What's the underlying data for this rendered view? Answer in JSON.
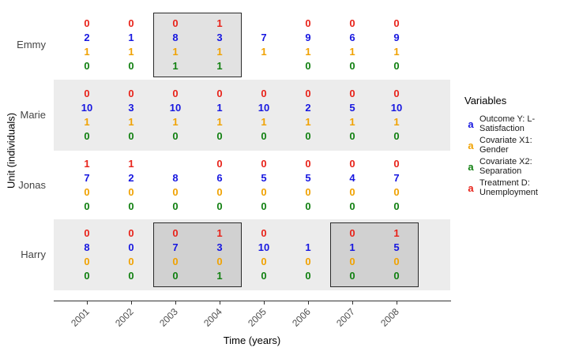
{
  "colors": {
    "red": "#E8231A",
    "blue": "#1717E0",
    "orange": "#F0A202",
    "green": "#118011",
    "band": "#ECECEC",
    "box_border": "#2A2A2A",
    "axis": "#333333",
    "tick_label": "#4D4D4D"
  },
  "axes": {
    "x_title": "Time (years)",
    "y_title": "Unit (individuals)"
  },
  "legend": {
    "title": "Variables",
    "key_glyph": "a",
    "entries": [
      {
        "series": "outcome",
        "color": "blue",
        "label": "Outcome Y: L-Satisfaction"
      },
      {
        "series": "covariate_x1",
        "color": "orange",
        "label": "Covariate X1: Gender"
      },
      {
        "series": "covariate_x2",
        "color": "green",
        "label": "Covariate X2: Separation"
      },
      {
        "series": "treatment",
        "color": "red",
        "label": "Treatment D: Unemployment"
      }
    ]
  },
  "chart_data": {
    "type": "table",
    "title": "",
    "xlabel": "Time (years)",
    "ylabel": "Unit (individuals)",
    "x": [
      "2001",
      "2002",
      "2003",
      "2004",
      "2005",
      "2006",
      "2007",
      "2008"
    ],
    "row_order_per_unit": [
      "treatment",
      "outcome",
      "covariate_x1",
      "covariate_x2"
    ],
    "series_colors": {
      "treatment": "red",
      "outcome": "blue",
      "covariate_x1": "orange",
      "covariate_x2": "green"
    },
    "units": [
      {
        "name": "Emmy",
        "shaded": false,
        "treatment": [
          0,
          0,
          0,
          1,
          null,
          0,
          0,
          0
        ],
        "outcome": [
          2,
          1,
          8,
          3,
          7,
          9,
          6,
          9
        ],
        "covariate_x1": [
          1,
          1,
          1,
          1,
          1,
          1,
          1,
          1
        ],
        "covariate_x2": [
          0,
          0,
          1,
          1,
          null,
          0,
          0,
          0
        ]
      },
      {
        "name": "Marie",
        "shaded": true,
        "treatment": [
          0,
          0,
          0,
          0,
          0,
          0,
          0,
          0
        ],
        "outcome": [
          10,
          3,
          10,
          1,
          10,
          2,
          5,
          10
        ],
        "covariate_x1": [
          1,
          1,
          1,
          1,
          1,
          1,
          1,
          1
        ],
        "covariate_x2": [
          0,
          0,
          0,
          0,
          0,
          0,
          0,
          0
        ]
      },
      {
        "name": "Jonas",
        "shaded": false,
        "treatment": [
          1,
          1,
          null,
          0,
          0,
          0,
          0,
          0
        ],
        "outcome": [
          7,
          2,
          8,
          6,
          5,
          5,
          4,
          7
        ],
        "covariate_x1": [
          0,
          0,
          0,
          0,
          0,
          0,
          0,
          0
        ],
        "covariate_x2": [
          0,
          0,
          0,
          0,
          0,
          0,
          0,
          0
        ]
      },
      {
        "name": "Harry",
        "shaded": true,
        "treatment": [
          0,
          0,
          0,
          1,
          0,
          null,
          0,
          1
        ],
        "outcome": [
          8,
          0,
          7,
          3,
          10,
          1,
          1,
          5
        ],
        "covariate_x1": [
          0,
          0,
          0,
          0,
          0,
          0,
          0,
          0
        ],
        "covariate_x2": [
          0,
          0,
          0,
          1,
          0,
          0,
          0,
          0
        ]
      }
    ],
    "highlight_boxes": [
      {
        "unit": "Emmy",
        "years": [
          "2003",
          "2004"
        ]
      },
      {
        "unit": "Harry",
        "years": [
          "2003",
          "2004"
        ]
      },
      {
        "unit": "Harry",
        "years": [
          "2007",
          "2008"
        ]
      }
    ]
  }
}
